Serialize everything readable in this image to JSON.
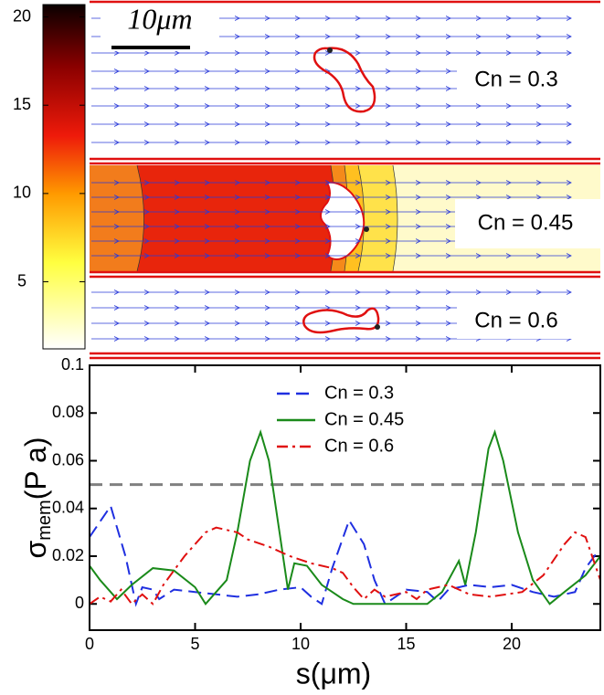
{
  "colorbar": {
    "ticks": [
      5,
      10,
      15,
      20
    ],
    "lim": [
      1.2,
      20.7
    ]
  },
  "scale_bar": "10μm",
  "panels": [
    {
      "label": "Cn = 0.3"
    },
    {
      "label": "Cn = 0.45"
    },
    {
      "label": "Cn = 0.6"
    }
  ],
  "chart_data": {
    "type": "line",
    "xlabel": "s(μm)",
    "ylabel": "σ",
    "ylabel_sub": "mem",
    "ylabel_unit": "(P a)",
    "xlim": [
      0,
      24.2
    ],
    "ylim": [
      -0.011,
      0.1
    ],
    "xticks": [
      0,
      5,
      10,
      15,
      20
    ],
    "yticks": [
      0,
      0.02,
      0.04,
      0.06,
      0.08,
      0.1
    ],
    "hline": {
      "value": 0.05,
      "color": "#808080"
    },
    "legend": "upper center",
    "series": [
      {
        "name": "Cn = 0.3",
        "color": "#1f2fe0",
        "dash": "dashed",
        "x": [
          0,
          1,
          1.7,
          2.2,
          2.5,
          3,
          3.3,
          4,
          5,
          6,
          7,
          8,
          9,
          10,
          10.5,
          11,
          11.5,
          12.3,
          13,
          13.5,
          14,
          15,
          16,
          16.5,
          17,
          18,
          19,
          20,
          21,
          22,
          23,
          23.5,
          24
        ],
        "values": [
          0.028,
          0.041,
          0.02,
          0,
          0.007,
          0.006,
          0.002,
          0.006,
          0.005,
          0.004,
          0.003,
          0.004,
          0.006,
          0.007,
          0.003,
          0,
          0.015,
          0.035,
          0.025,
          0.01,
          0,
          0.006,
          0.005,
          0.001,
          0.006,
          0.008,
          0.007,
          0.008,
          0.005,
          0.003,
          0.005,
          0.015,
          0.021
        ]
      },
      {
        "name": "Cn = 0.45",
        "color": "#1a8a1a",
        "dash": "solid",
        "x": [
          0,
          0.5,
          1.3,
          2,
          3,
          4,
          5,
          5.5,
          6.5,
          7,
          7.6,
          8.1,
          8.5,
          9,
          9.4,
          9.7,
          10.3,
          11,
          12,
          12.5,
          16,
          16.7,
          17.5,
          17.8,
          18.3,
          18.9,
          19.2,
          19.6,
          20.3,
          21,
          21.8,
          22.5,
          23.5,
          24.2
        ],
        "values": [
          0.016,
          0.01,
          0.002,
          0.008,
          0.015,
          0.014,
          0.007,
          0,
          0.01,
          0.03,
          0.06,
          0.072,
          0.06,
          0.03,
          0.006,
          0.017,
          0.016,
          0.008,
          0.002,
          0,
          0,
          0.005,
          0.018,
          0.008,
          0.03,
          0.065,
          0.072,
          0.06,
          0.03,
          0.01,
          0,
          0.005,
          0.012,
          0.02
        ]
      },
      {
        "name": "Cn = 0.6",
        "color": "#e01010",
        "dash": "dashdot",
        "x": [
          0,
          0.5,
          1,
          1.5,
          2,
          2.5,
          3,
          3.5,
          4.5,
          5.5,
          6,
          7,
          7.5,
          8.5,
          9.5,
          10.5,
          11.5,
          12,
          12.5,
          13,
          13.5,
          14,
          15,
          15.5,
          16,
          17,
          18,
          19,
          20.5,
          21.5,
          22.5,
          23,
          23.5,
          24.2
        ],
        "values": [
          0,
          0.003,
          0.001,
          0.006,
          0,
          0.004,
          0,
          0.008,
          0.02,
          0.03,
          0.032,
          0.03,
          0.027,
          0.024,
          0.02,
          0.017,
          0.015,
          0.013,
          0.007,
          0.002,
          0.006,
          0.003,
          0.005,
          0.002,
          0.006,
          0.008,
          0.004,
          0.003,
          0.005,
          0.012,
          0.025,
          0.03,
          0.028,
          0.01
        ]
      }
    ]
  }
}
